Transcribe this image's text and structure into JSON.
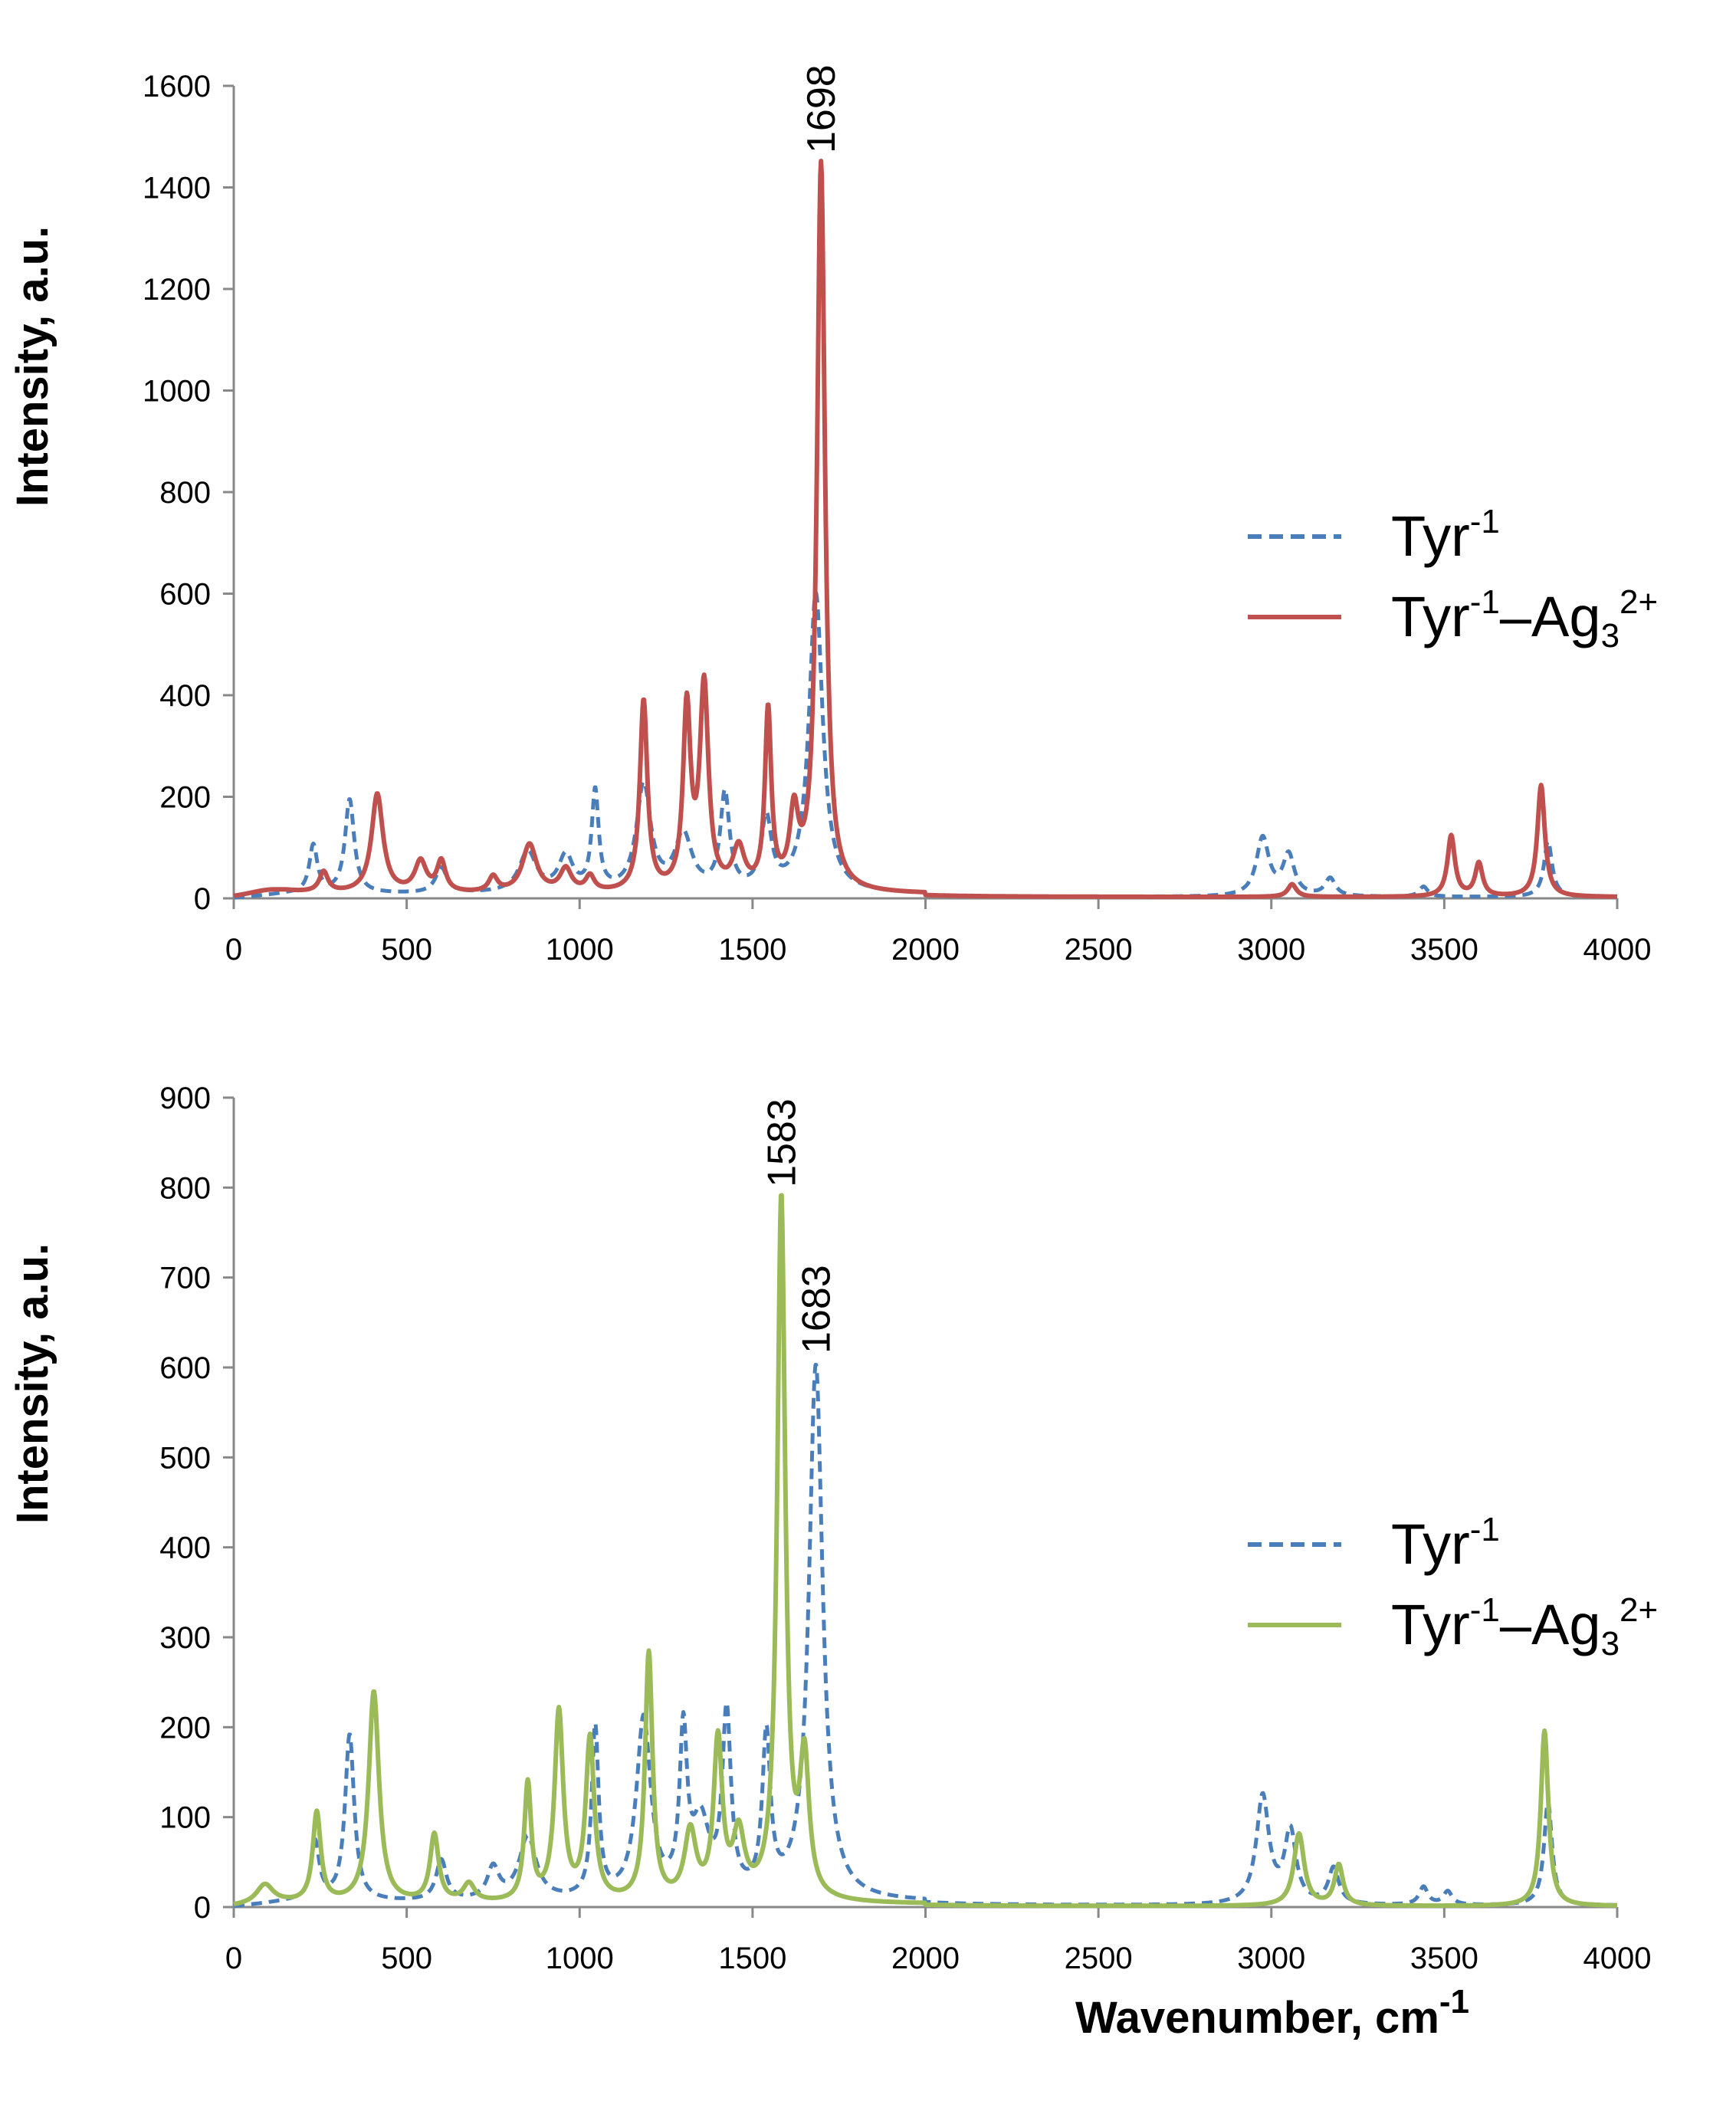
{
  "chart_data": [
    {
      "type": "line",
      "panel": "top",
      "ylabel": "Intensity, a.u.",
      "xlabel": "",
      "xlim": [
        0,
        4000
      ],
      "ylim": [
        0,
        1600
      ],
      "xticks": [
        0,
        500,
        1000,
        1500,
        2000,
        2500,
        3000,
        3500,
        4000
      ],
      "yticks": [
        0,
        200,
        400,
        600,
        800,
        1000,
        1200,
        1400,
        1600
      ],
      "annotations": [
        {
          "text": "1698",
          "x": 1698,
          "y": 1440
        }
      ],
      "legend_position": "right",
      "series": [
        {
          "name": "Tyr-1",
          "legend_base": "Tyr",
          "legend_sup": "-1",
          "style": "dashed",
          "color": "#4a7ebb",
          "baseline": 8,
          "peaks": [
            [
              230,
              95,
              14
            ],
            [
              335,
              185,
              16
            ],
            [
              600,
              50,
              20
            ],
            [
              850,
              80,
              30
            ],
            [
              960,
              70,
              25
            ],
            [
              1045,
              195,
              12
            ],
            [
              1185,
              210,
              25
            ],
            [
              1300,
              110,
              30
            ],
            [
              1420,
              190,
              16
            ],
            [
              1540,
              140,
              18
            ],
            [
              1683,
              590,
              24
            ],
            [
              2975,
              115,
              22
            ],
            [
              3050,
              80,
              20
            ],
            [
              3170,
              35,
              18
            ],
            [
              3440,
              20,
              15
            ],
            [
              3800,
              110,
              14
            ]
          ]
        },
        {
          "name": "Tyr-1–Ag3 2+",
          "legend_base": "Tyr",
          "legend_sup": "-1",
          "legend_mid": "–Ag",
          "legend_sub": "3",
          "legend_sup2": "2+",
          "style": "solid",
          "color": "#c0504d",
          "baseline": 8,
          "peaks": [
            [
              100,
              10,
              80
            ],
            [
              260,
              40,
              15
            ],
            [
              415,
              195,
              20
            ],
            [
              540,
              60,
              20
            ],
            [
              600,
              60,
              15
            ],
            [
              750,
              30,
              15
            ],
            [
              855,
              95,
              25
            ],
            [
              960,
              45,
              20
            ],
            [
              1030,
              30,
              15
            ],
            [
              1185,
              375,
              13
            ],
            [
              1310,
              355,
              13
            ],
            [
              1360,
              400,
              15
            ],
            [
              1460,
              80,
              20
            ],
            [
              1545,
              350,
              11
            ],
            [
              1620,
              140,
              15
            ],
            [
              1698,
              1435,
              14
            ],
            [
              3060,
              25,
              15
            ],
            [
              3520,
              120,
              13
            ],
            [
              3600,
              65,
              13
            ],
            [
              3780,
              220,
              13
            ]
          ]
        }
      ]
    },
    {
      "type": "line",
      "panel": "bottom",
      "ylabel": "Intensity, a.u.",
      "xlabel": "Wavenumber, cm",
      "xlabel_sup": "-1",
      "xlim": [
        0,
        4000
      ],
      "ylim": [
        0,
        900
      ],
      "xticks": [
        0,
        500,
        1000,
        1500,
        2000,
        2500,
        3000,
        3500,
        4000
      ],
      "yticks": [
        0,
        100,
        200,
        300,
        400,
        500,
        600,
        700,
        800,
        900
      ],
      "annotations": [
        {
          "text": "1583",
          "x": 1583,
          "y": 785
        },
        {
          "text": "1683",
          "x": 1683,
          "y": 600
        }
      ],
      "legend_position": "right",
      "series": [
        {
          "name": "Tyr-1",
          "legend_base": "Tyr",
          "legend_sup": "-1",
          "style": "dashed",
          "color": "#4a7ebb",
          "baseline": 5,
          "peaks": [
            [
              235,
              65,
              15
            ],
            [
              335,
              185,
              16
            ],
            [
              600,
              45,
              18
            ],
            [
              750,
              35,
              20
            ],
            [
              850,
              70,
              30
            ],
            [
              1045,
              190,
              12
            ],
            [
              1185,
              200,
              25
            ],
            [
              1300,
              175,
              13
            ],
            [
              1350,
              80,
              30
            ],
            [
              1425,
              200,
              15
            ],
            [
              1540,
              175,
              14
            ],
            [
              1683,
              595,
              24
            ],
            [
              2975,
              120,
              22
            ],
            [
              3055,
              80,
              20
            ],
            [
              3180,
              40,
              18
            ],
            [
              3440,
              20,
              15
            ],
            [
              3510,
              15,
              15
            ],
            [
              3800,
              115,
              14
            ]
          ]
        },
        {
          "name": "Tyr-1–Ag3 2+",
          "legend_base": "Tyr",
          "legend_sup": "-1",
          "legend_mid": "–Ag",
          "legend_sub": "3",
          "legend_sup2": "2+",
          "style": "solid",
          "color": "#9bbb59",
          "baseline": 3,
          "peaks": [
            [
              90,
              22,
              30
            ],
            [
              240,
              100,
              14
            ],
            [
              405,
              235,
              18
            ],
            [
              580,
              75,
              15
            ],
            [
              680,
              20,
              20
            ],
            [
              850,
              130,
              12
            ],
            [
              940,
              210,
              15
            ],
            [
              1030,
              180,
              15
            ],
            [
              1200,
              275,
              13
            ],
            [
              1320,
              75,
              20
            ],
            [
              1400,
              175,
              15
            ],
            [
              1460,
              70,
              20
            ],
            [
              1583,
              780,
              14
            ],
            [
              1650,
              150,
              16
            ],
            [
              3080,
              80,
              18
            ],
            [
              3195,
              45,
              15
            ],
            [
              3790,
              195,
              13
            ]
          ]
        }
      ]
    }
  ]
}
